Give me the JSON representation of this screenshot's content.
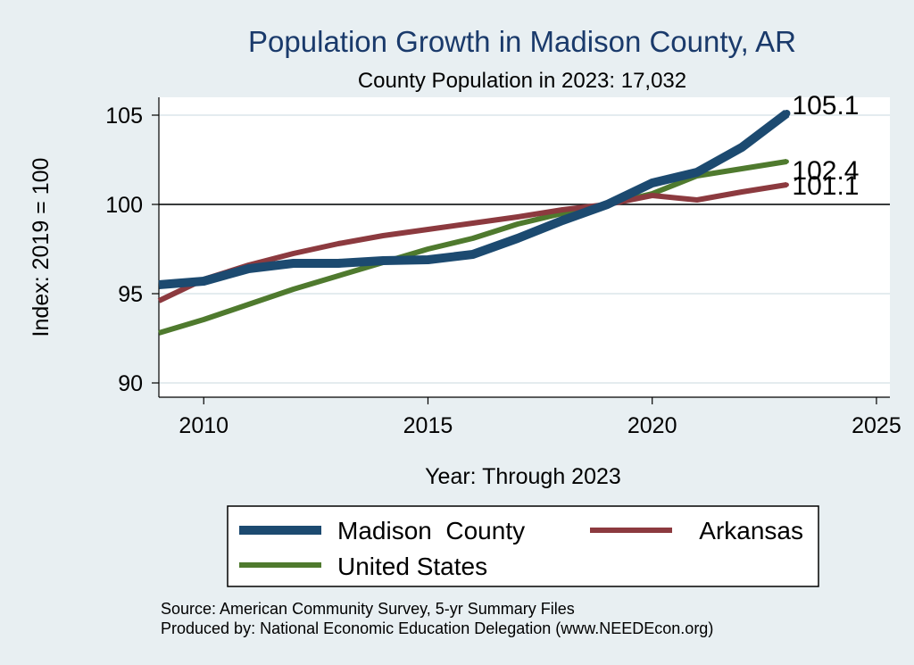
{
  "colors": {
    "background": "#e8eff2",
    "plot_background": "#ffffff",
    "title": "#1a3a6b",
    "gridline": "#e4ecef",
    "reference_line": "#000000"
  },
  "chart_data": {
    "type": "line",
    "title": "Population Growth in Madison County, AR",
    "subtitle": "County Population in 2023: 17,032",
    "xlabel": "Year: Through 2023",
    "ylabel": "Index: 2019 = 100",
    "xlim": [
      2009,
      2025.3
    ],
    "ylim": [
      89.2,
      106
    ],
    "xticks": [
      2010,
      2015,
      2020,
      2025
    ],
    "yticks": [
      90,
      95,
      100,
      105
    ],
    "reference_line": 100,
    "grid": true,
    "legend_position": "bottom",
    "x": [
      2009,
      2010,
      2011,
      2012,
      2013,
      2014,
      2015,
      2016,
      2017,
      2018,
      2019,
      2020,
      2021,
      2022,
      2023
    ],
    "series": [
      {
        "name": "Madison  County",
        "color": "#1c4a70",
        "values": [
          95.5,
          95.7,
          96.4,
          96.7,
          96.7,
          96.85,
          96.9,
          97.2,
          98.1,
          99.1,
          100.0,
          101.2,
          101.8,
          103.2,
          105.1
        ],
        "end_label": "105.1"
      },
      {
        "name": "Arkansas",
        "color": "#8c3a3f",
        "values": [
          94.6,
          95.8,
          96.6,
          97.25,
          97.8,
          98.25,
          98.6,
          98.95,
          99.3,
          99.7,
          100.0,
          100.5,
          100.25,
          100.7,
          101.1
        ],
        "end_label": "101.1"
      },
      {
        "name": "United States",
        "color": "#4f7a2e",
        "values": [
          92.8,
          93.55,
          94.4,
          95.25,
          96.0,
          96.75,
          97.5,
          98.1,
          98.9,
          99.5,
          100.0,
          100.6,
          101.6,
          102.0,
          102.4
        ],
        "end_label": "102.4"
      }
    ],
    "source_lines": [
      "Source: American Community Survey, 5-yr Summary Files",
      "Produced by: National Economic Education Delegation (www.NEEDEcon.org)"
    ]
  }
}
